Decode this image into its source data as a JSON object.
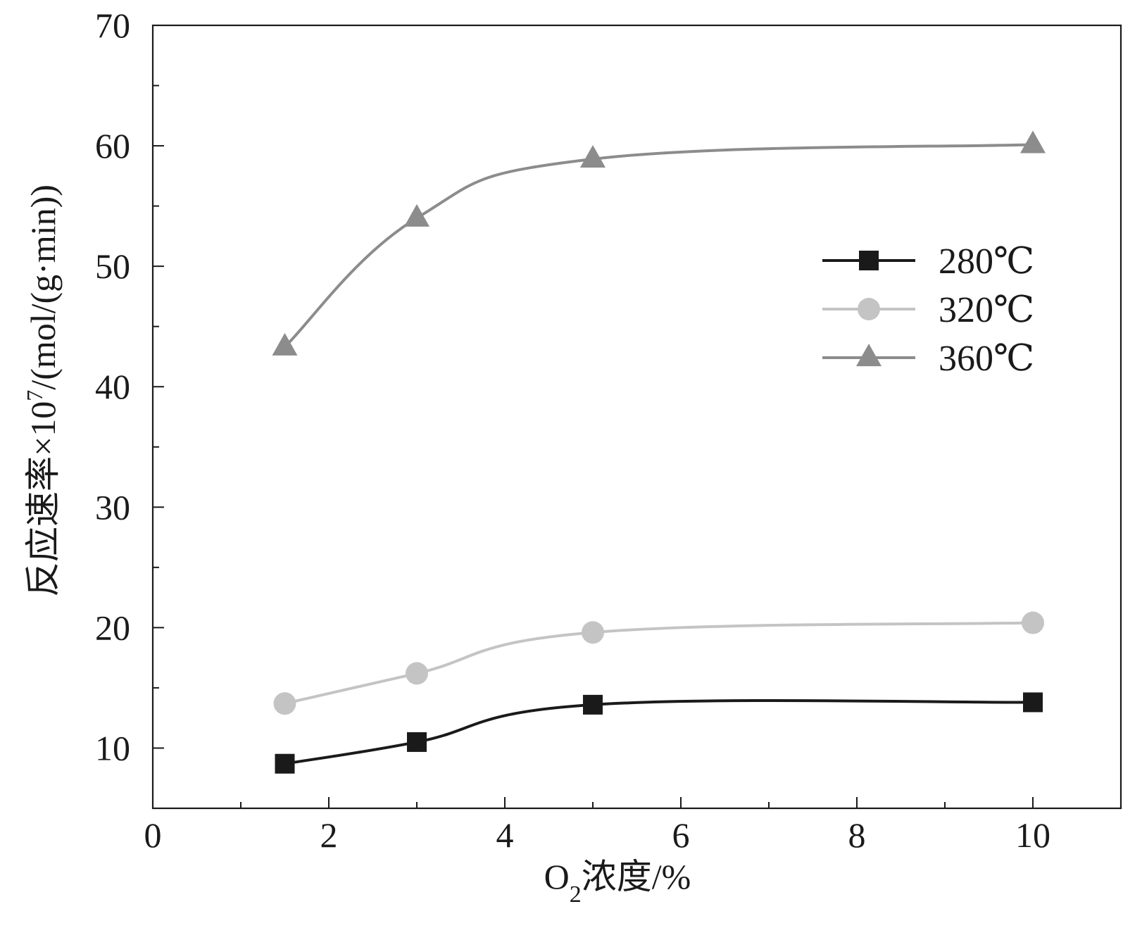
{
  "chart_data": {
    "type": "line",
    "title": "",
    "xlabel": {
      "prefix": "O",
      "subscript": "2",
      "suffix": "浓度/%"
    },
    "ylabel": {
      "main": "反应速率×10",
      "superscript": "7",
      "unit": "/(mol/(g·min))"
    },
    "xlim": [
      0,
      11
    ],
    "ylim": [
      5,
      70
    ],
    "x_ticks": [
      0,
      2,
      4,
      6,
      8,
      10
    ],
    "x_tick_labels": [
      "0",
      "2",
      "4",
      "6",
      "8",
      "10"
    ],
    "x_minor_ticks": [
      1,
      3,
      5,
      7,
      9,
      11
    ],
    "y_ticks": [
      10,
      20,
      30,
      40,
      50,
      60,
      70
    ],
    "y_tick_labels": [
      "10",
      "20",
      "30",
      "40",
      "50",
      "60",
      "70"
    ],
    "y_minor_ticks": [
      15,
      25,
      35,
      45,
      55,
      65
    ],
    "grid": false,
    "legend_position": "right",
    "smooth_lines": true,
    "x": [
      1.5,
      3,
      5,
      10
    ],
    "series": [
      {
        "name": "280℃",
        "values": [
          8.7,
          10.5,
          13.6,
          13.8
        ],
        "color": "#1a1a1a",
        "marker": "square"
      },
      {
        "name": "320℃",
        "values": [
          13.7,
          16.2,
          19.6,
          20.4
        ],
        "color": "#c4c4c4",
        "marker": "circle"
      },
      {
        "name": "360℃",
        "values": [
          43.3,
          54.0,
          58.9,
          60.1
        ],
        "color": "#8c8c8c",
        "marker": "triangle"
      }
    ]
  }
}
